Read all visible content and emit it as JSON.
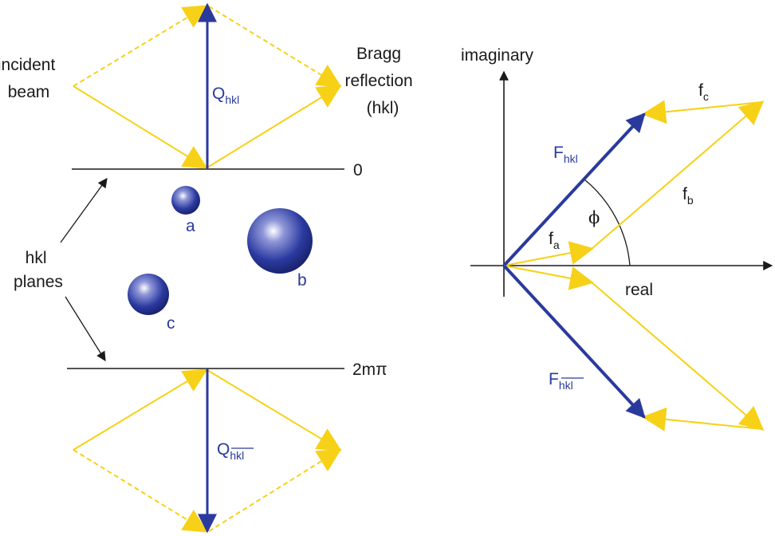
{
  "labels": {
    "incident_beam": [
      "incident",
      "beam"
    ],
    "bragg_reflection": [
      "Bragg",
      "reflection",
      "(hkl)"
    ],
    "q_hkl": {
      "main": "Q",
      "sub": "hkl"
    },
    "q_hkl_bar": {
      "main": "Q",
      "sub": "hkl"
    },
    "plane_zero": "0",
    "plane_2mpi": "2mπ",
    "hkl_planes": [
      "hkl",
      "planes"
    ],
    "atom_a": "a",
    "atom_b": "b",
    "atom_c": "c",
    "imaginary": "imaginary",
    "real": "real",
    "phi": "ϕ",
    "f_hkl": {
      "main": "F",
      "sub": "hkl"
    },
    "f_hkl_bar": {
      "main": "F",
      "sub": "hkl"
    },
    "f_a": {
      "main": "f",
      "sub": "a"
    },
    "f_b": {
      "main": "f",
      "sub": "b"
    },
    "f_c": {
      "main": "f",
      "sub": "c"
    }
  },
  "colors": {
    "vector_blue": "#2a3a9c",
    "beam_yellow": "#f7d117",
    "axis_black": "#1a1a1a",
    "atom_blue": "#2b3aa0"
  }
}
